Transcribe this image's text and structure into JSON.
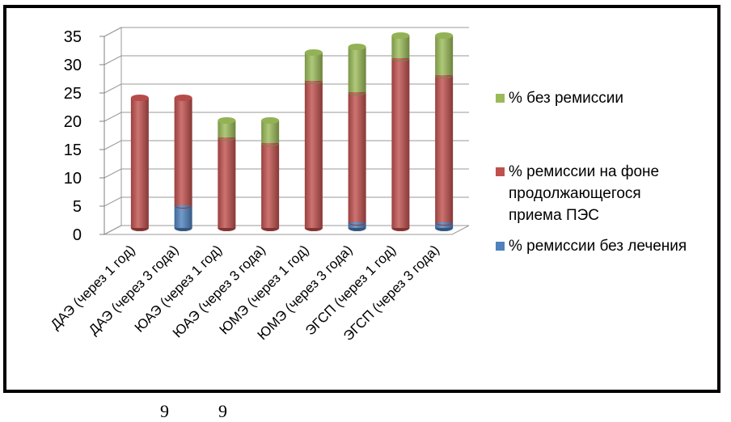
{
  "chart_data": {
    "type": "bar",
    "stacked": true,
    "style": "3d-cylinder",
    "categories": [
      "ДАЭ (через 1 год)",
      "ДАЭ (через 3 года)",
      "ЮАЭ (через 1 год)",
      "ЮАЭ (через 3 года)",
      "ЮМЭ (через 1 год)",
      "ЮМЭ (через 3 года)",
      "ЭГСП (через 1 год)",
      "ЭГСП (через 3 года)"
    ],
    "series": [
      {
        "name": "% ремиссии без лечения",
        "color": "#4f81bd",
        "values": [
          0,
          4,
          0,
          0,
          0,
          1,
          0,
          1
        ]
      },
      {
        "name": "% ремиссии на фоне продолжающегося приема ПЭС",
        "color": "#c0504d",
        "values": [
          23,
          19,
          16,
          15,
          26,
          23,
          30,
          26
        ]
      },
      {
        "name": "% без ремиссии",
        "color": "#9bbb59",
        "values": [
          0,
          0,
          3,
          4,
          5,
          8,
          4,
          7
        ]
      }
    ],
    "legend_order": [
      {
        "name": "% без ремиссии",
        "lines": [
          "% без ремиссии"
        ],
        "color": "#9bbb59"
      },
      {
        "name": "% ремиссии на фоне продолжающегося приема ПЭС",
        "lines": [
          "% ремиссии на фоне",
          "продолжающегося",
          "приема ПЭС"
        ],
        "color": "#c0504d"
      },
      {
        "name": "% ремиссии без лечения",
        "lines": [
          "% ремиссии без лечения"
        ],
        "color": "#4f81bd"
      }
    ],
    "yticks": [
      "0",
      "5",
      "10",
      "15",
      "20",
      "25",
      "30",
      "35"
    ],
    "ylim": [
      0,
      35
    ],
    "grid": true,
    "legend_position": "right",
    "title": "",
    "xlabel": "",
    "ylabel": ""
  },
  "footer": {
    "num1": "9",
    "num2": "9"
  }
}
